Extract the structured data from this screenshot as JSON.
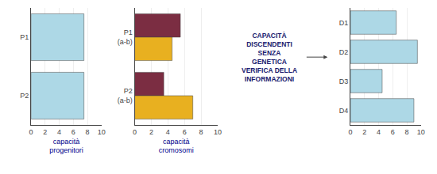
{
  "chart_data": [
    {
      "type": "bar",
      "orientation": "horizontal",
      "categories": [
        "P1",
        "P2"
      ],
      "values": [
        7.5,
        7.5
      ],
      "color": "#add8e6",
      "xlabel": "capacità\nprogenitori",
      "xlim": [
        0,
        10
      ],
      "xticks": [
        0,
        2,
        4,
        6,
        8,
        10
      ],
      "grid": true
    },
    {
      "type": "bar",
      "orientation": "horizontal",
      "categories": [
        "P1\n(a-b)",
        "P2\n(a-b)"
      ],
      "series": [
        {
          "color": "#7b2d42",
          "values": [
            5.5,
            3.5
          ]
        },
        {
          "color": "#e8b020",
          "values": [
            4.5,
            7.0
          ]
        }
      ],
      "xlabel": "capacità\ncromosomi",
      "xlim": [
        0,
        10
      ],
      "xticks": [
        0,
        2,
        4,
        6,
        8,
        10
      ],
      "grid": true
    },
    {
      "type": "bar",
      "orientation": "horizontal",
      "categories": [
        "D1",
        "D2",
        "D3",
        "D4"
      ],
      "values": [
        6.5,
        9.5,
        4.5,
        9.0
      ],
      "color": "#add8e6",
      "annotations": [
        "CAPACITÀ\nDISCENDENTI\nSENZA\nGENETICA\nVERIFICA DELLA\nINFORMAZIONI"
      ],
      "xlim": [
        0,
        10
      ],
      "xticks": [
        0,
        2,
        4,
        6,
        8,
        10
      ],
      "grid": true
    }
  ]
}
